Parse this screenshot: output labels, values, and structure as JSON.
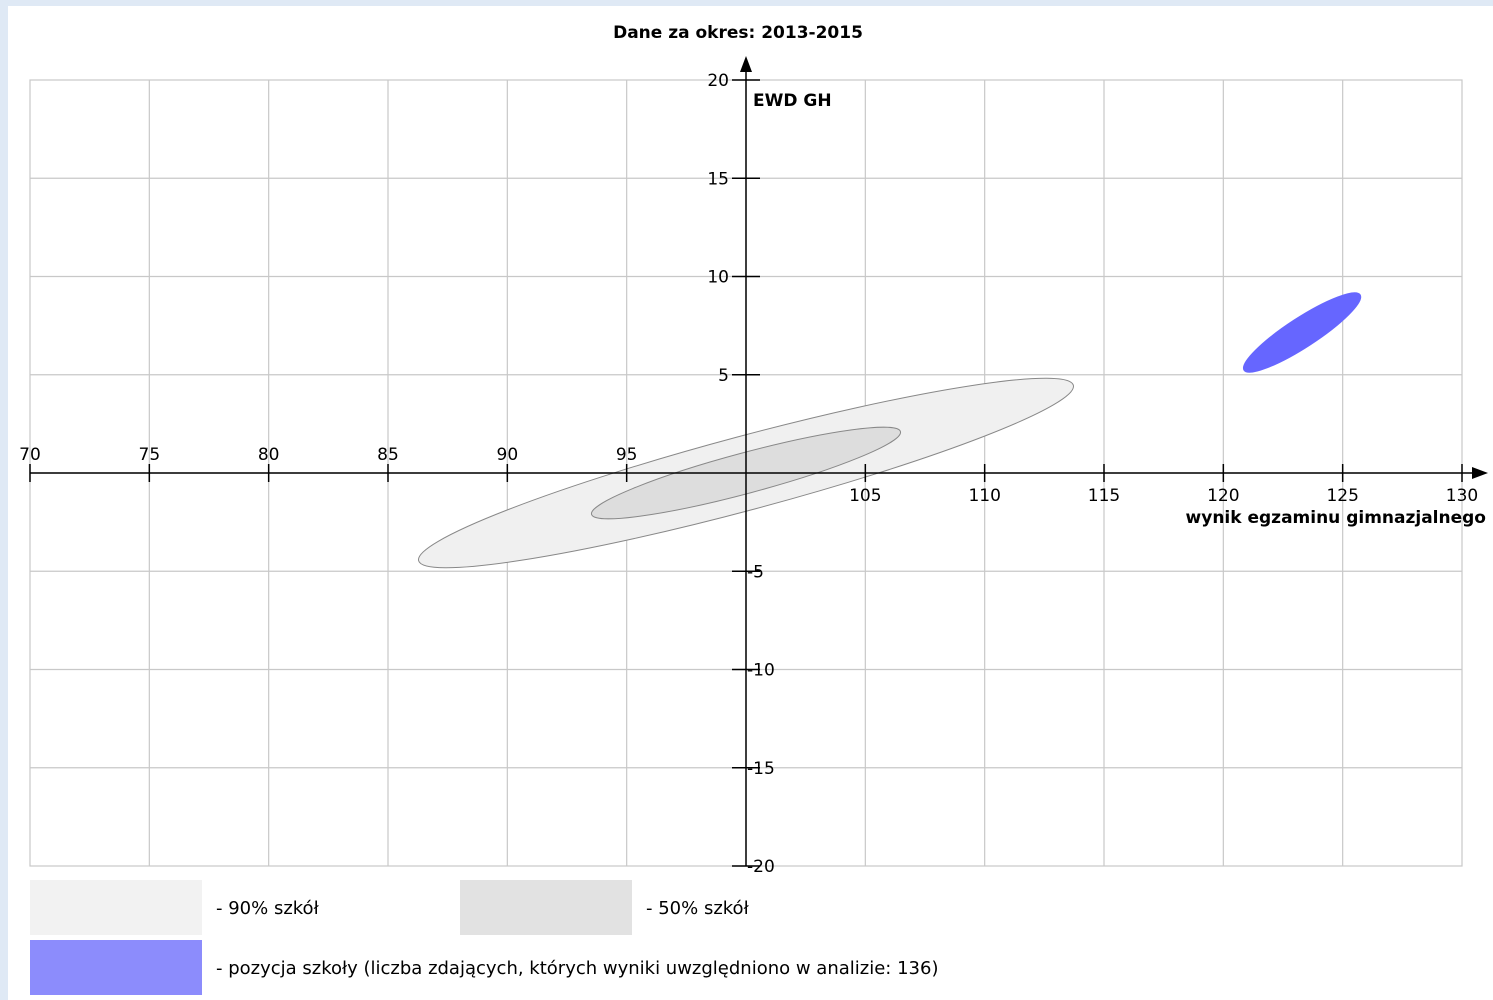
{
  "chart_data": {
    "type": "scatter",
    "title": "Dane za okres: 2013-2015",
    "xlabel": "wynik egzaminu gimnazjalnego",
    "ylabel": "EWD GH",
    "xlim": [
      70,
      130
    ],
    "ylim": [
      -20,
      20
    ],
    "x_ticks": [
      70,
      75,
      80,
      85,
      90,
      95,
      105,
      110,
      115,
      120,
      125,
      130
    ],
    "y_ticks": [
      20,
      15,
      10,
      5,
      -5,
      -10,
      -15,
      -20
    ],
    "grid": true,
    "regions": [
      {
        "id": "p90",
        "cx": 100,
        "cy": 0,
        "rx": 14.2,
        "ry": 1.55,
        "angle_deg": -15.0,
        "color": "#f0f0f0",
        "stroke": "#888888"
      },
      {
        "id": "p50",
        "cx": 100,
        "cy": 0,
        "rx": 6.7,
        "ry": 0.85,
        "angle_deg": -15.0,
        "color": "#dddddd",
        "stroke": "#888888"
      },
      {
        "id": "school",
        "cx": 123.3,
        "cy": 7.15,
        "rx": 2.9,
        "ry": 0.62,
        "angle_deg": -33.0,
        "color": "#6666ff",
        "stroke": "#6666ff"
      }
    ],
    "legend": [
      {
        "label": "- 90% szkół",
        "color": "#f2f2f2"
      },
      {
        "label": "- 50% szkół",
        "color": "#e2e2e2"
      },
      {
        "label": "- pozycja szkoły (liczba zdających, których wyniki uwzględniono w analizie: 136)",
        "color": "#8c8cfc"
      }
    ]
  }
}
